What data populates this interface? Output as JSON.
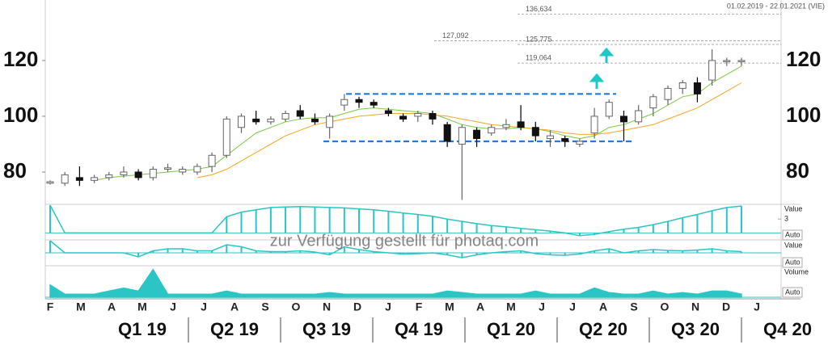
{
  "chart_data": {
    "type": "candlestick",
    "date_range": "01.02.2019 - 22.01.2021 (VIE)",
    "watermark": "zur Verfügung gestellt für photaq.com",
    "open": [
      76,
      76,
      78,
      77,
      78,
      79,
      80,
      78,
      81,
      80,
      80,
      82,
      86,
      96,
      99,
      98,
      99,
      102,
      99,
      96,
      104,
      106,
      105,
      102,
      100,
      100,
      101,
      97,
      90,
      95,
      94,
      96,
      98,
      96,
      92,
      92,
      90,
      94,
      100,
      100,
      98,
      103,
      106,
      110,
      112,
      113,
      120,
      120
    ],
    "high": [
      77,
      80,
      82,
      79,
      80,
      82,
      81,
      82,
      83,
      82,
      83,
      87,
      100,
      101,
      102,
      100,
      102,
      104,
      101,
      101,
      108,
      107,
      106,
      103,
      101,
      102,
      102,
      98,
      97,
      96,
      97,
      99,
      104,
      98,
      95,
      93,
      92,
      103,
      106,
      102,
      104,
      108,
      111,
      113,
      114,
      124,
      121,
      121
    ],
    "low": [
      75.5,
      75,
      75,
      76,
      77,
      78,
      77,
      77,
      80,
      79,
      79,
      80,
      85,
      94,
      97,
      97,
      98,
      99,
      97,
      92,
      102,
      103,
      103,
      100,
      98,
      98,
      97,
      89,
      70,
      89,
      93,
      95,
      95,
      91,
      89,
      89,
      89,
      92,
      99,
      91,
      97,
      100,
      104,
      108,
      105,
      111,
      118,
      118
    ],
    "close": [
      76.5,
      79,
      77,
      78,
      79,
      80,
      78,
      81,
      81.5,
      81,
      82,
      86,
      99,
      100,
      98,
      99,
      101,
      100,
      98,
      100,
      106,
      105,
      104,
      101,
      99,
      101,
      99,
      91,
      96,
      92,
      96,
      97,
      96,
      93,
      93,
      91,
      91,
      100,
      105,
      98,
      102,
      107,
      110,
      112,
      108,
      120,
      120,
      120
    ],
    "moving_averages": [
      {
        "color": "#7ac943",
        "values": [
          null,
          null,
          null,
          77,
          78,
          78.5,
          79,
          79.5,
          80,
          80.5,
          81,
          82,
          86,
          90,
          94,
          96,
          98,
          99,
          99.5,
          99.5,
          101,
          102.5,
          103,
          102.5,
          102,
          101.5,
          101,
          99,
          97,
          96,
          95.5,
          95.5,
          96,
          95.5,
          94.5,
          93,
          92,
          93,
          96,
          97,
          99,
          101,
          104,
          107,
          108,
          112,
          115,
          118
        ]
      },
      {
        "color": "#f5a623",
        "values": [
          null,
          null,
          null,
          null,
          null,
          null,
          null,
          null,
          null,
          null,
          78,
          79,
          81,
          84,
          87,
          90,
          93,
          95,
          97,
          98,
          99,
          100,
          100.5,
          101,
          101,
          101,
          100.5,
          100,
          99,
          98,
          97,
          96.5,
          96,
          95.5,
          95,
          94,
          93.5,
          93.5,
          94,
          95,
          96,
          97,
          99,
          101,
          103,
          106,
          109,
          112
        ]
      }
    ],
    "ylim": [
      68.4,
      141.7
    ],
    "yticks": [
      80,
      100,
      120
    ],
    "levels": [
      {
        "value": 136.634,
        "label": "136,634"
      },
      {
        "value": 127.092,
        "label": "127,092"
      },
      {
        "value": 125.775,
        "label": "125,775"
      },
      {
        "value": 119.064,
        "label": "119,064"
      }
    ],
    "channel": [
      108,
      91
    ],
    "months": [
      "F",
      "M",
      "A",
      "M",
      "J",
      "J",
      "A",
      "S",
      "O",
      "N",
      "D",
      "J",
      "F",
      "M",
      "A",
      "M",
      "J",
      "J",
      "A",
      "S",
      "O",
      "N",
      "D",
      "J"
    ],
    "quarters": [
      "Q1 19",
      "Q2 19",
      "Q3 19",
      "Q4 19",
      "Q1 20",
      "Q2 20",
      "Q3 20",
      "Q4 20"
    ],
    "panels": [
      {
        "type": "bar",
        "label": "Value",
        "scale": "Auto",
        "ylim": [
          -1.5,
          6
        ],
        "yticks": [
          3
        ],
        "color": "#2cc5c5",
        "values": [
          6,
          0,
          0,
          0,
          0,
          0,
          0,
          0,
          0,
          0,
          0,
          0,
          3.5,
          4.5,
          5,
          5.5,
          5.6,
          5.7,
          5.6,
          5.5,
          5.4,
          5.2,
          5,
          4.7,
          4.3,
          4,
          3.6,
          3,
          2.5,
          2,
          1.6,
          1.3,
          1,
          0.7,
          0.4,
          0,
          -0.6,
          -0.3,
          0.3,
          0.8,
          1.2,
          1.8,
          2.5,
          3.3,
          4,
          4.8,
          5.5,
          5.8
        ]
      },
      {
        "type": "bar",
        "label": "Value",
        "scale": "Auto",
        "ylim": [
          -3,
          3
        ],
        "color": "#2cc5c5",
        "values": [
          3,
          0,
          0,
          0,
          0,
          0,
          -1,
          0.5,
          1,
          1,
          0.5,
          0.5,
          2,
          1.5,
          0.5,
          0.3,
          0.3,
          0.5,
          0.2,
          -0.5,
          1.5,
          0.8,
          0.3,
          0,
          -0.3,
          -0.2,
          0,
          -0.5,
          -1.2,
          -0.5,
          0,
          0.3,
          0.5,
          -0.2,
          -0.5,
          -0.6,
          -0.3,
          0.5,
          1,
          0,
          0.5,
          0.8,
          0.6,
          0.5,
          0.7,
          1,
          0.5,
          0.3
        ]
      },
      {
        "type": "area",
        "label": "Volume",
        "scale": "Auto",
        "ylim": [
          0,
          10
        ],
        "color": "#2cc5c5",
        "values": [
          4,
          1,
          1,
          1,
          2,
          3,
          2,
          9,
          1,
          1,
          1,
          1,
          2,
          1,
          1,
          1,
          1,
          1,
          1,
          1.5,
          1,
          1,
          1,
          1,
          1,
          1,
          1,
          2,
          1.5,
          1,
          1,
          1,
          1,
          2,
          1,
          1,
          1,
          3,
          1.5,
          1,
          1,
          2,
          1,
          1.5,
          1,
          2,
          2,
          1
        ]
      }
    ]
  }
}
